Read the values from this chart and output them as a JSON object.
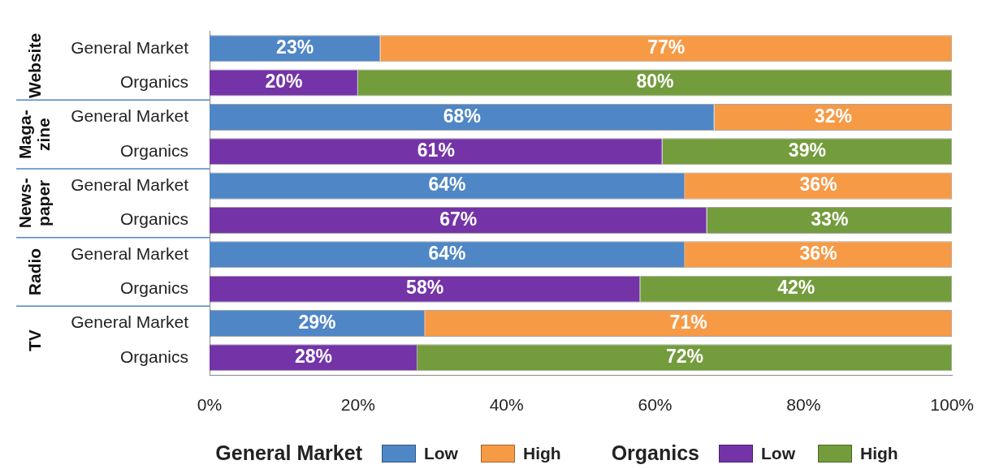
{
  "chart_data": {
    "type": "bar",
    "orientation": "horizontal",
    "stacked": true,
    "categories": [
      "General Market",
      "Organics",
      "General Market",
      "Organics",
      "General Market",
      "Organics",
      "General Market",
      "Organics",
      "General Market",
      "Organics"
    ],
    "annotations": [
      "Website",
      "Maga-\nzine",
      "News-\npaper",
      "Radio",
      "TV"
    ],
    "legend_title": [
      "General Market",
      "Organics"
    ],
    "series": [
      {
        "name": "Low",
        "color": "#4f86c6",
        "values": [
          23,
          null,
          68,
          null,
          64,
          null,
          64,
          null,
          29,
          null
        ],
        "value_labels": [
          "23%",
          null,
          "68%",
          null,
          "64%",
          null,
          "64%",
          null,
          "29%",
          null
        ]
      },
      {
        "name": "High",
        "color": "#f79a46",
        "values": [
          77,
          null,
          32,
          null,
          36,
          null,
          36,
          null,
          71,
          null
        ],
        "value_labels": [
          "77%",
          null,
          "32%",
          null,
          "36%",
          null,
          "36%",
          null,
          "71%",
          null
        ]
      },
      {
        "name": "Low",
        "color": "#7434a8",
        "values": [
          null,
          20,
          null,
          61,
          null,
          67,
          null,
          58,
          null,
          28
        ],
        "value_labels": [
          null,
          "20%",
          null,
          "61%",
          null,
          "67%",
          null,
          "58%",
          null,
          "28%"
        ]
      },
      {
        "name": "High",
        "color": "#739c3c",
        "values": [
          null,
          80,
          null,
          39,
          null,
          33,
          null,
          42,
          null,
          72
        ],
        "value_labels": [
          null,
          "80%",
          null,
          "39%",
          null,
          "33%",
          null,
          "42%",
          null,
          "72%"
        ]
      }
    ],
    "xlim": [
      0,
      100
    ],
    "xticks": [
      {
        "value": 0,
        "label": "0%"
      },
      {
        "value": 20,
        "label": "20%"
      },
      {
        "value": 40,
        "label": "40%"
      },
      {
        "value": 60,
        "label": "60%"
      },
      {
        "value": 80,
        "label": "80%"
      },
      {
        "value": 100,
        "label": "100%"
      }
    ],
    "grid": false,
    "legend": "bottom"
  }
}
